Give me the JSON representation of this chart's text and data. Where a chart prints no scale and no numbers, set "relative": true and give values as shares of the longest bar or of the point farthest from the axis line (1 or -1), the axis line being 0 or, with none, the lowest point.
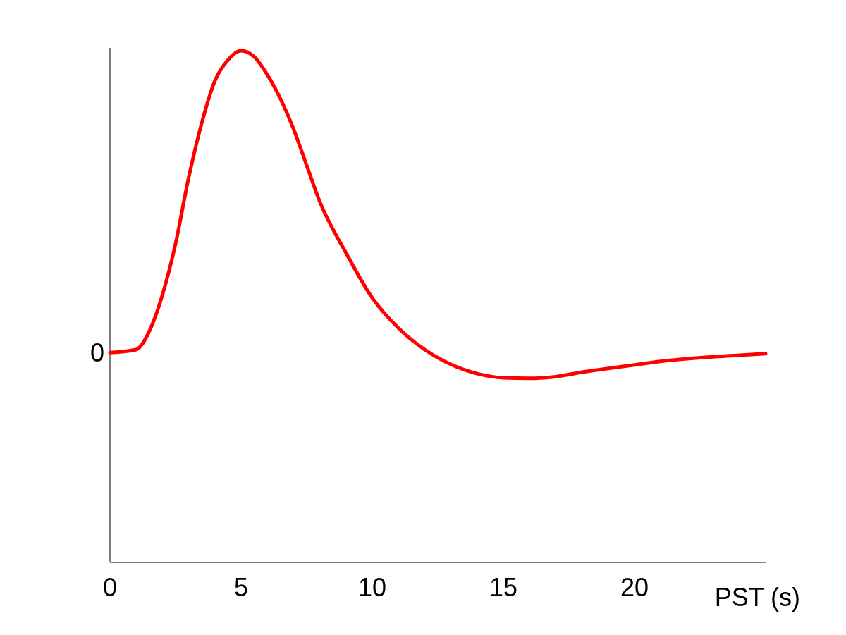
{
  "chart_data": {
    "type": "line",
    "relative": true,
    "xlabel": "PST (s)",
    "xlim": [
      0,
      25
    ],
    "xticks": [
      0,
      5,
      10,
      15,
      20
    ],
    "annotations": [
      {
        "text": "0",
        "x": 0,
        "y": 0.41
      }
    ],
    "marker": "none",
    "line_style": "solid",
    "x": [
      0,
      1,
      1.5,
      2,
      2.5,
      3,
      3.5,
      4,
      4.5,
      5,
      5.5,
      6,
      6.5,
      7,
      7.5,
      8,
      9,
      10,
      11,
      12,
      13,
      14,
      15,
      16,
      17,
      18,
      19,
      20,
      21,
      22,
      23,
      24,
      25
    ],
    "series": [
      {
        "color": "#ff0000",
        "values": [
          0.41,
          0.416,
          0.452,
          0.523,
          0.623,
          0.752,
          0.859,
          0.941,
          0.982,
          1,
          0.988,
          0.953,
          0.906,
          0.847,
          0.776,
          0.705,
          0.605,
          0.517,
          0.458,
          0.416,
          0.387,
          0.369,
          0.361,
          0.36,
          0.363,
          0.372,
          0.379,
          0.386,
          0.393,
          0.398,
          0.402,
          0.405,
          0.408
        ]
      }
    ]
  }
}
